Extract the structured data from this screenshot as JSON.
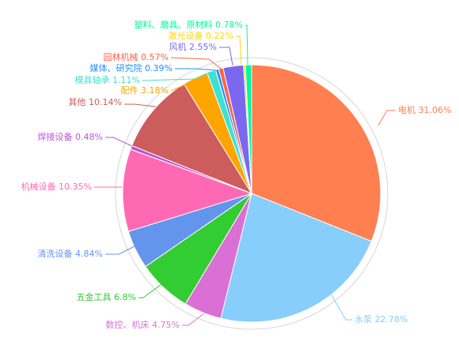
{
  "chart_data": {
    "type": "pie",
    "title": "",
    "slices": [
      {
        "label": "电机",
        "value": 31.06,
        "display": "电机 31.06%",
        "color": "#FF7F50"
      },
      {
        "label": "水泵",
        "value": 22.78,
        "display": "水泵 22.78%",
        "color": "#87CEFA"
      },
      {
        "label": "数控、机床",
        "value": 4.75,
        "display": "数控、机床 4.75%",
        "color": "#DA70D6"
      },
      {
        "label": "五金工具",
        "value": 6.8,
        "display": "五金工具 6.8%",
        "color": "#32CD32"
      },
      {
        "label": "清洗设备",
        "value": 4.84,
        "display": "清洗设备 4.84%",
        "color": "#6495ED"
      },
      {
        "label": "机械设备",
        "value": 10.35,
        "display": "机械设备 10.35%",
        "color": "#FF69B4"
      },
      {
        "label": "焊接设备",
        "value": 0.48,
        "display": "焊接设备 0.48%",
        "color": "#BA55D3"
      },
      {
        "label": "其他",
        "value": 10.14,
        "display": "其他 10.14%",
        "color": "#CD5C5C"
      },
      {
        "label": "配件",
        "value": 3.18,
        "display": "配件 3.18%",
        "color": "#FFA500"
      },
      {
        "label": "模具轴承",
        "value": 1.11,
        "display": "模具轴承 1.11%",
        "color": "#40E0D0"
      },
      {
        "label": "媒体、研究院",
        "value": 0.39,
        "display": "媒体、研究院 0.39%",
        "color": "#1E90FF"
      },
      {
        "label": "园林机械",
        "value": 0.57,
        "display": "园林机械 0.57%",
        "color": "#FF6347"
      },
      {
        "label": "风机",
        "value": 2.55,
        "display": "风机 2.55%",
        "color": "#7B68EE"
      },
      {
        "label": "激光设备",
        "value": 0.22,
        "display": "激光设备 0.22%",
        "color": "#FFD700"
      },
      {
        "label": "塑料、磨具、原材料",
        "value": 0.78,
        "display": "塑料、磨具、原材料 0.78%",
        "color": "#00FA9A"
      }
    ]
  }
}
